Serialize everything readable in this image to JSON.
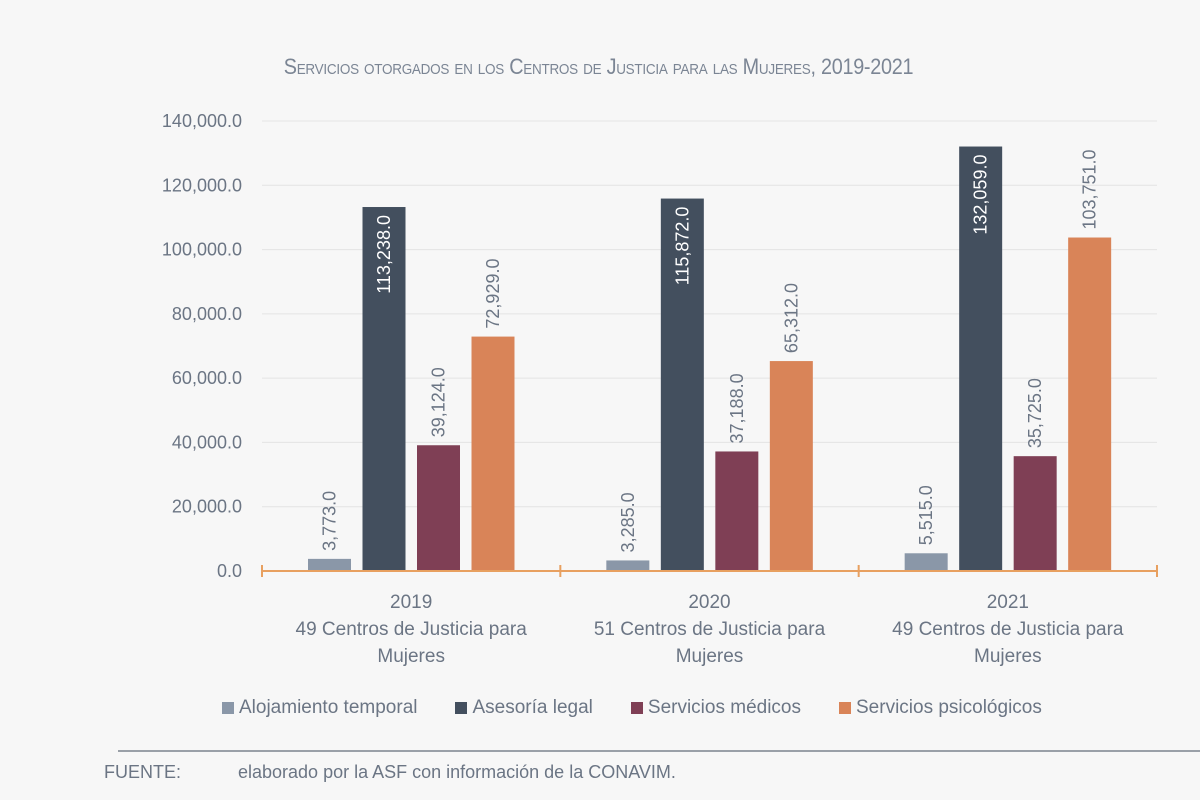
{
  "chart_data": {
    "type": "bar",
    "title": "Servicios otorgados en los Centros de Justicia para las Mujeres, 2019-2021",
    "categories": [
      [
        "2019",
        "49  Centros de Justicia para",
        "Mujeres"
      ],
      [
        "2020",
        "51 Centros de Justicia para",
        "Mujeres"
      ],
      [
        "2021",
        "49  Centros de Justicia para",
        "Mujeres"
      ]
    ],
    "series": [
      {
        "name": "Alojamiento temporal",
        "color": "#8a97a8",
        "values": [
          3773,
          3285,
          5515
        ],
        "labels": [
          "3,773.0",
          "3,285.0",
          "5,515.0"
        ]
      },
      {
        "name": "Asesoría legal",
        "color": "#434f5e",
        "values": [
          113238,
          115872,
          132059
        ],
        "labels": [
          "113,238.0",
          "115,872.0",
          "132,059.0"
        ]
      },
      {
        "name": "Servicios médicos",
        "color": "#7f3f55",
        "values": [
          39124,
          37188,
          35725
        ],
        "labels": [
          "39,124.0",
          "37,188.0",
          "35,725.0"
        ]
      },
      {
        "name": "Servicios psicológicos",
        "color": "#d98458",
        "values": [
          72929,
          65312,
          103751
        ],
        "labels": [
          "72,929.0",
          "65,312.0",
          "103,751.0"
        ]
      }
    ],
    "ylim": [
      0,
      140000
    ],
    "yticks": [
      "0.0",
      "20,000.0",
      "40,000.0",
      "60,000.0",
      "80,000.0",
      "100,000.0",
      "120,000.0",
      "140,000.0"
    ],
    "grid": true,
    "legend": "bottom",
    "axis_color": "#e8a060"
  },
  "source": {
    "label": "FUENTE:",
    "text": "elaborado por la ASF con información de la CONAVIM."
  }
}
